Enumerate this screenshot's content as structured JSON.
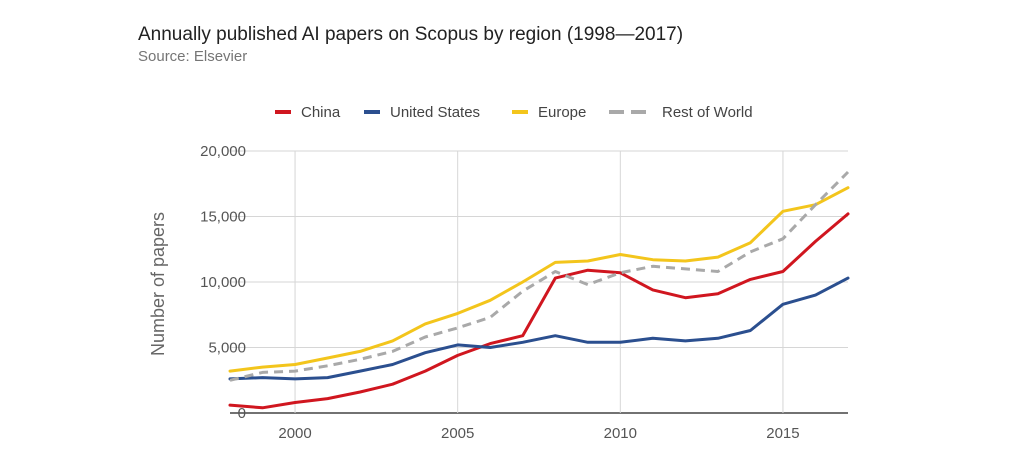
{
  "chart_data": {
    "type": "line",
    "title": "Annually published AI papers on Scopus by region (1998—2017)",
    "subtitle": "Source: Elsevier",
    "ylabel": "Number of papers",
    "xlabel": "",
    "x": [
      1998,
      1999,
      2000,
      2001,
      2002,
      2003,
      2004,
      2005,
      2006,
      2007,
      2008,
      2009,
      2010,
      2011,
      2012,
      2013,
      2014,
      2015,
      2016,
      2017
    ],
    "xlim": [
      1998,
      2017
    ],
    "ylim": [
      0,
      20000
    ],
    "x_ticks": [
      2000,
      2005,
      2010,
      2015
    ],
    "x_tick_labels": [
      "2000",
      "2005",
      "2010",
      "2015"
    ],
    "y_ticks": [
      0,
      5000,
      10000,
      15000,
      20000
    ],
    "y_tick_labels": [
      "0",
      "5,000",
      "10,000",
      "15,000",
      "20,000"
    ],
    "grid": true,
    "legend_position": "top",
    "series": [
      {
        "name": "China",
        "color": "#d0161f",
        "dash": false,
        "values": [
          600,
          400,
          800,
          1100,
          1600,
          2200,
          3200,
          4400,
          5300,
          5900,
          10300,
          10900,
          10700,
          9400,
          8800,
          9100,
          10200,
          10800,
          13100,
          15200
        ]
      },
      {
        "name": "United States",
        "color": "#2b4f8f",
        "dash": false,
        "values": [
          2600,
          2700,
          2600,
          2700,
          3200,
          3700,
          4600,
          5200,
          5000,
          5400,
          5900,
          5400,
          5400,
          5700,
          5500,
          5700,
          6300,
          8300,
          9000,
          10300
        ]
      },
      {
        "name": "Europe",
        "color": "#f3c51c",
        "dash": false,
        "values": [
          3200,
          3500,
          3700,
          4200,
          4700,
          5500,
          6800,
          7600,
          8600,
          10000,
          11500,
          11600,
          12100,
          11700,
          11600,
          11900,
          13000,
          15400,
          15900,
          17200
        ]
      },
      {
        "name": "Rest of World",
        "color": "#a9a9a9",
        "dash": true,
        "values": [
          2500,
          3100,
          3200,
          3600,
          4100,
          4700,
          5800,
          6500,
          7300,
          9300,
          10800,
          9800,
          10700,
          11200,
          11000,
          10800,
          12300,
          13300,
          15900,
          18400
        ]
      }
    ]
  }
}
